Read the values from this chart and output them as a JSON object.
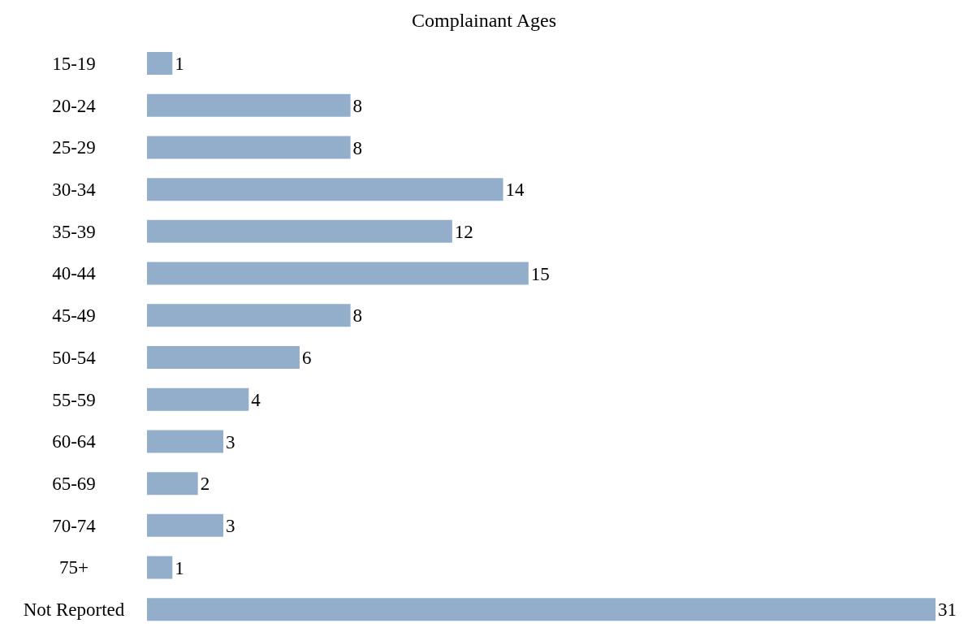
{
  "chart_data": {
    "type": "bar",
    "orientation": "horizontal",
    "title": "Complainant Ages",
    "categories": [
      "15-19",
      "20-24",
      "25-29",
      "30-34",
      "35-39",
      "40-44",
      "45-49",
      "50-54",
      "55-59",
      "60-64",
      "65-69",
      "70-74",
      "75+",
      "Not Reported"
    ],
    "values": [
      1,
      8,
      8,
      14,
      12,
      15,
      8,
      6,
      4,
      3,
      2,
      3,
      1,
      31
    ],
    "color": "#92aecb",
    "data_labels": true
  }
}
